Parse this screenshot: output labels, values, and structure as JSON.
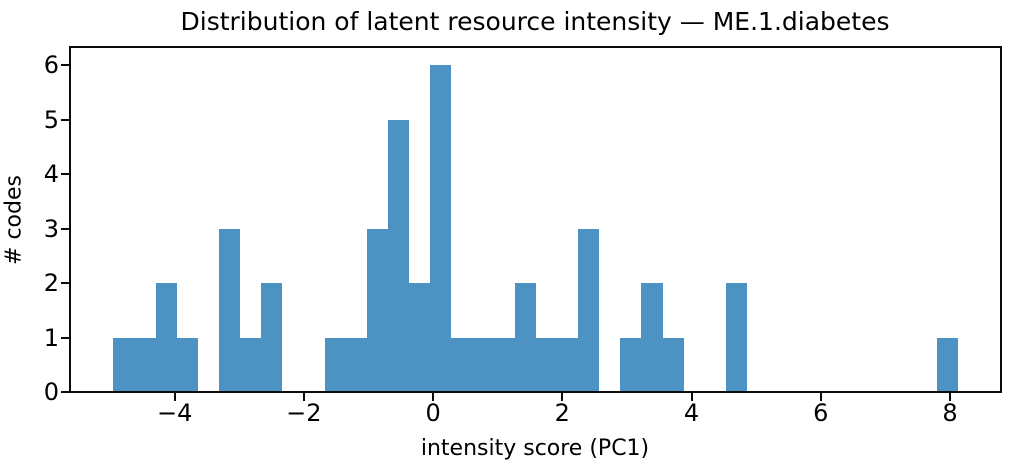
{
  "chart_data": {
    "type": "bar",
    "subtype": "histogram",
    "title": "Distribution of latent resource intensity — ME.1.diabetes",
    "xlabel": "intensity score (PC1)",
    "ylabel": "# codes",
    "bar_color": "#4C92C3",
    "grid": false,
    "legend": null,
    "bins": 40,
    "bin_start": -4.95,
    "bin_width": 0.327,
    "counts": [
      1,
      1,
      2,
      1,
      0,
      3,
      1,
      2,
      0,
      0,
      1,
      1,
      3,
      5,
      2,
      6,
      1,
      1,
      1,
      2,
      1,
      1,
      3,
      0,
      1,
      2,
      1,
      0,
      0,
      2,
      0,
      0,
      0,
      0,
      0,
      0,
      0,
      0,
      0,
      1
    ],
    "xlim": [
      -5.62,
      8.79
    ],
    "ylim": [
      0,
      6.33
    ],
    "xticks": [
      {
        "value": -4,
        "label": "−4"
      },
      {
        "value": -2,
        "label": "−2"
      },
      {
        "value": 0,
        "label": "0"
      },
      {
        "value": 2,
        "label": "2"
      },
      {
        "value": 4,
        "label": "4"
      },
      {
        "value": 6,
        "label": "6"
      },
      {
        "value": 8,
        "label": "8"
      }
    ],
    "yticks": [
      {
        "value": 0,
        "label": "0"
      },
      {
        "value": 1,
        "label": "1"
      },
      {
        "value": 2,
        "label": "2"
      },
      {
        "value": 3,
        "label": "3"
      },
      {
        "value": 4,
        "label": "4"
      },
      {
        "value": 5,
        "label": "5"
      },
      {
        "value": 6,
        "label": "6"
      }
    ]
  }
}
